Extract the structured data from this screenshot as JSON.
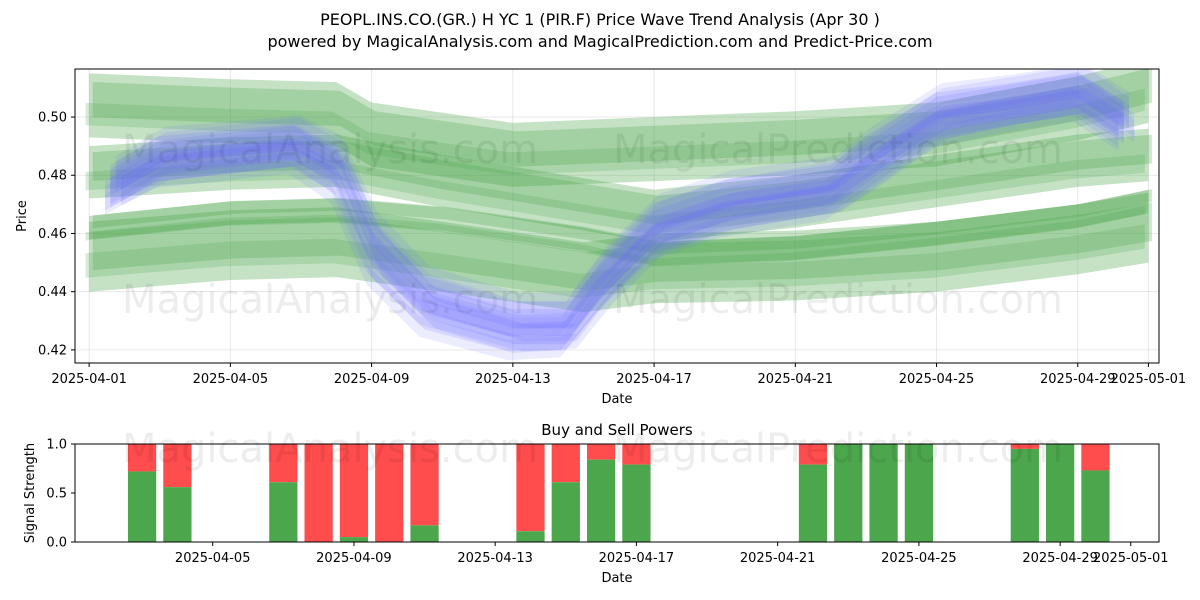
{
  "chart_data": [
    {
      "type": "area",
      "title": "PEOPL.INS.CO.(GR.) H YC 1 (PIR.F) Price Wave Trend Analysis (Apr 30 )",
      "subtitle": "powered by MagicalAnalysis.com and MagicalPrediction.com and Predict-Price.com",
      "xlabel": "Date",
      "ylabel": "Price",
      "xlim": [
        -0.4,
        30.3
      ],
      "ylim": [
        0.4155,
        0.5165
      ],
      "x_ticks": [
        {
          "label": "2025-04-01",
          "day": 0
        },
        {
          "label": "2025-04-05",
          "day": 4
        },
        {
          "label": "2025-04-09",
          "day": 8
        },
        {
          "label": "2025-04-13",
          "day": 12
        },
        {
          "label": "2025-04-17",
          "day": 16
        },
        {
          "label": "2025-04-21",
          "day": 20
        },
        {
          "label": "2025-04-25",
          "day": 24
        },
        {
          "label": "2025-04-29",
          "day": 28
        },
        {
          "label": "2025-05-01",
          "day": 30
        }
      ],
      "y_ticks": [
        0.42,
        0.44,
        0.46,
        0.48,
        0.5
      ],
      "grid": true,
      "series": [
        {
          "name": "green-wave-upper",
          "color": "#4ca64c",
          "x": [
            0,
            4,
            7,
            8,
            12,
            16,
            20,
            24,
            28,
            30
          ],
          "y": [
            0.504,
            0.502,
            0.501,
            0.494,
            0.487,
            0.489,
            0.491,
            0.494,
            0.503,
            0.509
          ],
          "width": 0.022
        },
        {
          "name": "green-wave-mid",
          "color": "#4ca64c",
          "x": [
            0,
            4,
            7,
            10,
            12,
            16,
            20,
            24,
            28,
            30
          ],
          "y": [
            0.481,
            0.484,
            0.485,
            0.478,
            0.474,
            0.466,
            0.471,
            0.478,
            0.485,
            0.487
          ],
          "width": 0.018
        },
        {
          "name": "green-wave-lower",
          "color": "#4ca64c",
          "x": [
            0,
            4,
            7,
            10,
            14,
            16,
            20,
            24,
            28,
            30
          ],
          "y": [
            0.452,
            0.456,
            0.457,
            0.452,
            0.445,
            0.448,
            0.449,
            0.452,
            0.458,
            0.462
          ],
          "width": 0.024
        },
        {
          "name": "green-trend",
          "color": "#4ca64c",
          "x": [
            0,
            4,
            7,
            10,
            14,
            16,
            20,
            24,
            28,
            30
          ],
          "y": [
            0.462,
            0.467,
            0.468,
            0.465,
            0.458,
            0.453,
            0.455,
            0.46,
            0.466,
            0.471
          ],
          "width": 0.008
        },
        {
          "name": "blue-wave-1",
          "color": "#6a6aff",
          "x": [
            0.6,
            2,
            5.8,
            7,
            8,
            9.5,
            12,
            13.5,
            14.5,
            16,
            18,
            21,
            22,
            24,
            26,
            28,
            29.3
          ],
          "y": [
            0.476,
            0.486,
            0.491,
            0.483,
            0.455,
            0.437,
            0.428,
            0.428,
            0.444,
            0.462,
            0.47,
            0.476,
            0.485,
            0.501,
            0.505,
            0.509,
            0.498
          ],
          "width": 0.012
        },
        {
          "name": "blue-wave-2",
          "color": "#6a6aff",
          "x": [
            0.6,
            2,
            5.8,
            7,
            8,
            9.5,
            12,
            13.5,
            14.5,
            16,
            18,
            21,
            22,
            24,
            26,
            28,
            29.3
          ],
          "y": [
            0.474,
            0.483,
            0.488,
            0.478,
            0.45,
            0.432,
            0.424,
            0.425,
            0.44,
            0.458,
            0.466,
            0.472,
            0.48,
            0.497,
            0.502,
            0.506,
            0.496
          ],
          "width": 0.01
        },
        {
          "name": "blue-wave-3",
          "color": "#6a6aff",
          "x": [
            0.6,
            2,
            5.8,
            7,
            8,
            9.5,
            12,
            13.5,
            14.5,
            16,
            18,
            21,
            22,
            24,
            26,
            28,
            29.3
          ],
          "y": [
            0.479,
            0.489,
            0.493,
            0.486,
            0.46,
            0.441,
            0.432,
            0.432,
            0.448,
            0.466,
            0.474,
            0.479,
            0.489,
            0.504,
            0.507,
            0.511,
            0.501
          ],
          "width": 0.009
        }
      ]
    },
    {
      "type": "bar",
      "title": "Buy and Sell Powers",
      "xlabel": "Date",
      "ylabel": "Signal Strength",
      "xlim": [
        -0.4,
        30.3
      ],
      "ylim": [
        0,
        1.0
      ],
      "x_ticks": [
        {
          "label": "2025-04-05",
          "day": 4
        },
        {
          "label": "2025-04-09",
          "day": 8
        },
        {
          "label": "2025-04-13",
          "day": 12
        },
        {
          "label": "2025-04-17",
          "day": 16
        },
        {
          "label": "2025-04-21",
          "day": 20
        },
        {
          "label": "2025-04-25",
          "day": 24
        },
        {
          "label": "2025-04-29",
          "day": 28
        },
        {
          "label": "2025-05-01",
          "day": 30
        }
      ],
      "y_ticks": [
        "0.0",
        "0.5",
        "1.0"
      ],
      "buy_color": "#4ca64c",
      "sell_color": "#ff4c4c",
      "days": [
        2,
        3,
        6,
        7,
        8,
        9,
        10,
        13,
        14,
        15,
        16,
        21,
        22,
        23,
        24,
        27,
        28,
        29
      ],
      "buy": [
        0.72,
        0.56,
        0.61,
        0.0,
        0.05,
        0.0,
        0.17,
        0.11,
        0.61,
        0.84,
        0.79,
        0.79,
        1.0,
        1.0,
        1.0,
        0.95,
        1.0,
        0.73
      ]
    }
  ],
  "watermarks": [
    "MagicalAnalysis.com",
    "MagicalPrediction.com"
  ]
}
